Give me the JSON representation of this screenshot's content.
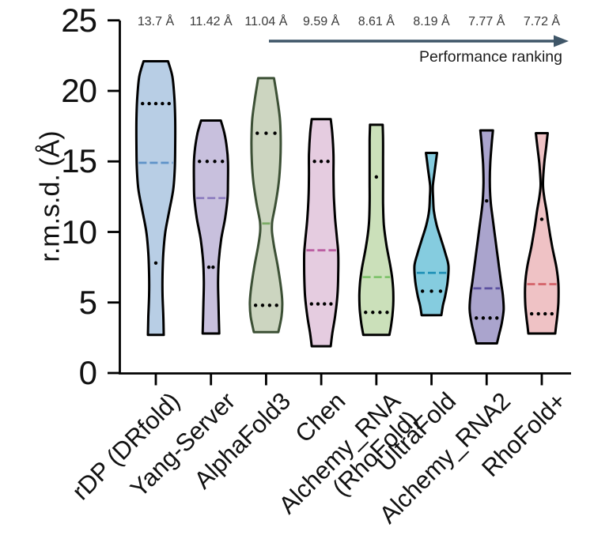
{
  "figure": {
    "ylabel": "r.m.s.d. (Å)",
    "arrow_label": "Performance ranking"
  },
  "chart_data": {
    "type": "violin",
    "title": "",
    "xlabel": "",
    "ylabel": "r.m.s.d. (Å)",
    "ylim": [
      0,
      25
    ],
    "yticks": [
      0,
      5,
      10,
      15,
      20,
      25
    ],
    "grid": false,
    "legend": "none",
    "annotation_row": "mean r.m.s.d. per method, shown above each violin",
    "arrow_label": "Performance ranking",
    "arrow_color": "#3f5668",
    "categories": [
      "rDP (DRfold)",
      "Yang-Server",
      "AlphaFold3",
      "Chen",
      "Alchemy_RNA\n(RhoFold)",
      "UltraFold",
      "Alchemy_RNA2",
      "RhoFold+"
    ],
    "series": [
      {
        "name": "rDP (DRfold)",
        "mean_label": "13.7 Å",
        "mean": 13.7,
        "median": 14.9,
        "q1": 7.8,
        "q3": 19.1,
        "min": 2.7,
        "max": 22.1,
        "fill": "#b8cee5",
        "stroke": "#000000",
        "median_color": "#5f93c9",
        "profile": [
          [
            22.1,
            15.5
          ],
          [
            21,
            21
          ],
          [
            19.5,
            23.5
          ],
          [
            18,
            24.5
          ],
          [
            16,
            24.5
          ],
          [
            14.5,
            24
          ],
          [
            13,
            22
          ],
          [
            11.5,
            17
          ],
          [
            10,
            12
          ],
          [
            8.5,
            9.5
          ],
          [
            7,
            8.5
          ],
          [
            5.5,
            8.5
          ],
          [
            4,
            9.5
          ],
          [
            2.7,
            10
          ]
        ]
      },
      {
        "name": "Yang-Server",
        "mean_label": "11.42 Å",
        "mean": 11.42,
        "median": 12.4,
        "q1": 7.5,
        "q3": 15.0,
        "min": 2.8,
        "max": 17.9,
        "fill": "#c8c0dd",
        "stroke": "#000000",
        "median_color": "#8f7fc0",
        "profile": [
          [
            17.9,
            12.5
          ],
          [
            17,
            17
          ],
          [
            16,
            20
          ],
          [
            15,
            21.5
          ],
          [
            13.5,
            21.5
          ],
          [
            12.4,
            21
          ],
          [
            11,
            18
          ],
          [
            9.5,
            13
          ],
          [
            8,
            10
          ],
          [
            6.5,
            9
          ],
          [
            5,
            9.5
          ],
          [
            3.8,
            10
          ],
          [
            2.8,
            10.5
          ]
        ]
      },
      {
        "name": "AlphaFold3",
        "mean_label": "11.04 Å",
        "mean": 11.04,
        "median": 10.6,
        "q1": 4.8,
        "q3": 17.0,
        "min": 2.9,
        "max": 20.9,
        "fill": "#ccd5c0",
        "stroke": "#3c5035",
        "median_color": "#7cab66",
        "profile": [
          [
            20.9,
            10
          ],
          [
            19.5,
            14
          ],
          [
            18,
            17.5
          ],
          [
            16.5,
            18.5
          ],
          [
            15,
            18
          ],
          [
            13.5,
            16
          ],
          [
            12,
            12
          ],
          [
            11,
            8.5
          ],
          [
            10.6,
            7.5
          ],
          [
            10,
            7.5
          ],
          [
            9,
            10
          ],
          [
            7.5,
            15
          ],
          [
            6,
            19
          ],
          [
            5,
            20.5
          ],
          [
            4,
            19.5
          ],
          [
            2.9,
            15.5
          ]
        ]
      },
      {
        "name": "Chen",
        "mean_label": "9.59 Å",
        "mean": 9.59,
        "median": 8.7,
        "q1": 4.9,
        "q3": 15.0,
        "min": 1.9,
        "max": 18.0,
        "fill": "#e5cce0",
        "stroke": "#000000",
        "median_color": "#bb5fa2",
        "profile": [
          [
            18,
            12
          ],
          [
            17,
            14
          ],
          [
            15.5,
            15.5
          ],
          [
            14,
            15.5
          ],
          [
            12.5,
            16
          ],
          [
            11,
            17.5
          ],
          [
            9.5,
            20
          ],
          [
            8.5,
            21.5
          ],
          [
            7,
            21.5
          ],
          [
            5.5,
            20.5
          ],
          [
            4,
            17.5
          ],
          [
            2.8,
            14
          ],
          [
            1.9,
            12
          ]
        ]
      },
      {
        "name": "Alchemy_RNA (RhoFold)",
        "mean_label": "8.61 Å",
        "mean": 8.61,
        "median": 6.8,
        "q1": 4.3,
        "q3": 13.9,
        "min": 2.7,
        "max": 17.6,
        "fill": "#cbe0ba",
        "stroke": "#000000",
        "median_color": "#7fc36c",
        "profile": [
          [
            17.6,
            8
          ],
          [
            16.5,
            8.5
          ],
          [
            15,
            8.5
          ],
          [
            13.5,
            8.5
          ],
          [
            12,
            8.5
          ],
          [
            10.5,
            9.5
          ],
          [
            9,
            13
          ],
          [
            7.5,
            18
          ],
          [
            6.5,
            20.5
          ],
          [
            5.5,
            21.5
          ],
          [
            4.5,
            21
          ],
          [
            3.5,
            19
          ],
          [
            2.7,
            16.5
          ]
        ]
      },
      {
        "name": "UltraFold",
        "mean_label": "8.19 Å",
        "mean": 8.19,
        "median": 7.1,
        "q1": 5.8,
        "q3": null,
        "min": 4.1,
        "max": 15.6,
        "fill": "#85ccdf",
        "stroke": "#000000",
        "median_color": "#2292b8",
        "profile": [
          [
            15.6,
            7
          ],
          [
            14.5,
            4.5
          ],
          [
            13.3,
            1.8
          ],
          [
            12.5,
            2
          ],
          [
            11.5,
            3
          ],
          [
            10.5,
            6.5
          ],
          [
            9.5,
            12
          ],
          [
            8.5,
            17.5
          ],
          [
            7.6,
            21.5
          ],
          [
            6.5,
            20.5
          ],
          [
            5.5,
            17.5
          ],
          [
            4.8,
            14.5
          ],
          [
            4.1,
            12.5
          ]
        ]
      },
      {
        "name": "Alchemy_RNA2",
        "mean_label": "7.77 Å",
        "mean": 7.77,
        "median": 6.0,
        "q1": 3.9,
        "q3": 12.2,
        "min": 2.1,
        "max": 17.2,
        "fill": "#aaa4cd",
        "stroke": "#000000",
        "median_color": "#5b50a0",
        "profile": [
          [
            17.2,
            8
          ],
          [
            16,
            6
          ],
          [
            14.8,
            4.5
          ],
          [
            13.5,
            4
          ],
          [
            12.2,
            5
          ],
          [
            11,
            7.5
          ],
          [
            9.5,
            11
          ],
          [
            8,
            14.5
          ],
          [
            6.5,
            18
          ],
          [
            5.5,
            20.5
          ],
          [
            4.5,
            21.5
          ],
          [
            3.5,
            19
          ],
          [
            2.8,
            16
          ],
          [
            2.1,
            13
          ]
        ]
      },
      {
        "name": "RhoFold+",
        "mean_label": "7.72 Å",
        "mean": 7.72,
        "median": 6.3,
        "q1": 4.2,
        "q3": 10.9,
        "min": 2.8,
        "max": 17.0,
        "fill": "#efc2c5",
        "stroke": "#000000",
        "median_color": "#d5666c",
        "profile": [
          [
            17,
            7.5
          ],
          [
            16,
            5.5
          ],
          [
            14.8,
            3
          ],
          [
            13.4,
            1.5
          ],
          [
            12.5,
            3
          ],
          [
            11.5,
            6
          ],
          [
            10.5,
            8.5
          ],
          [
            9,
            13
          ],
          [
            7.5,
            18.5
          ],
          [
            6.3,
            21
          ],
          [
            5,
            21
          ],
          [
            4,
            19.5
          ],
          [
            3.3,
            18
          ],
          [
            2.8,
            17
          ]
        ]
      }
    ]
  }
}
